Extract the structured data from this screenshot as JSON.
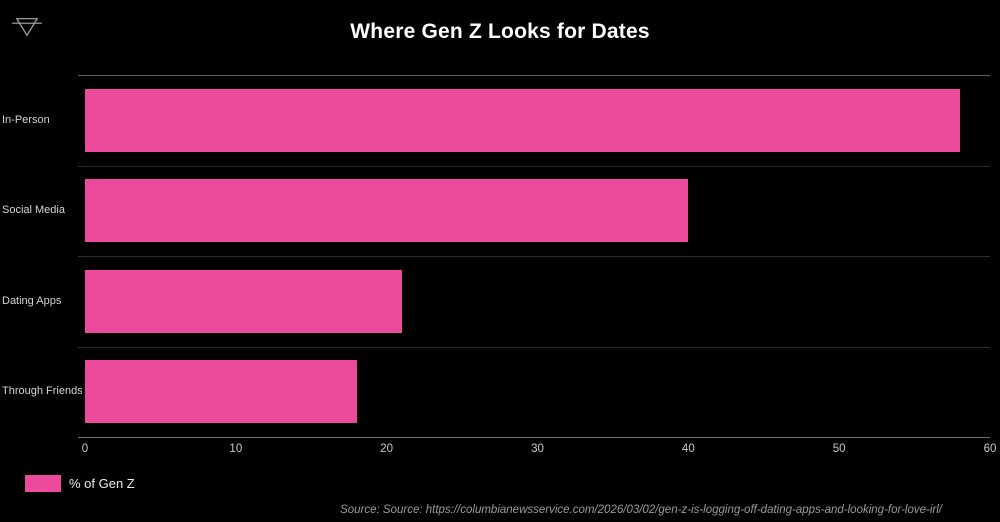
{
  "header": {
    "title": "Where Gen Z Looks for Dates",
    "toolbar_icon": "filter-icon"
  },
  "legend": {
    "label": "% of Gen Z",
    "swatch_color": "#ED4A9C"
  },
  "source": {
    "text": "Source: Source: https://columbianewsservice.com/2026/03/02/gen-z-is-logging-off-dating-apps-and-looking-for-love-irl/"
  },
  "colors": {
    "background": "#000000",
    "bar": "#ED4A9C",
    "title_text": "#ffffff",
    "category_text": "#d4d4d4",
    "axis_text": "#c9c9c9",
    "top_gridline": "#5e5e5e",
    "row_separator": "#2c2c2c",
    "axis_line": "#6f6f6f",
    "source_text": "#9a9a9a"
  },
  "chart_data": {
    "type": "bar",
    "orientation": "horizontal",
    "title": "Where Gen Z Looks for Dates",
    "categories": [
      "In-Person",
      "Social Media",
      "Dating Apps",
      "Through Friends"
    ],
    "values": [
      58,
      40,
      21,
      18
    ],
    "series_name": "% of Gen Z",
    "xlabel": "",
    "ylabel": "",
    "xlim": [
      0,
      60
    ],
    "x_ticks": [
      0,
      10,
      20,
      30,
      40,
      50,
      60
    ],
    "bar_color": "#ED4A9C",
    "grid": true,
    "legend_position": "bottom-left"
  }
}
